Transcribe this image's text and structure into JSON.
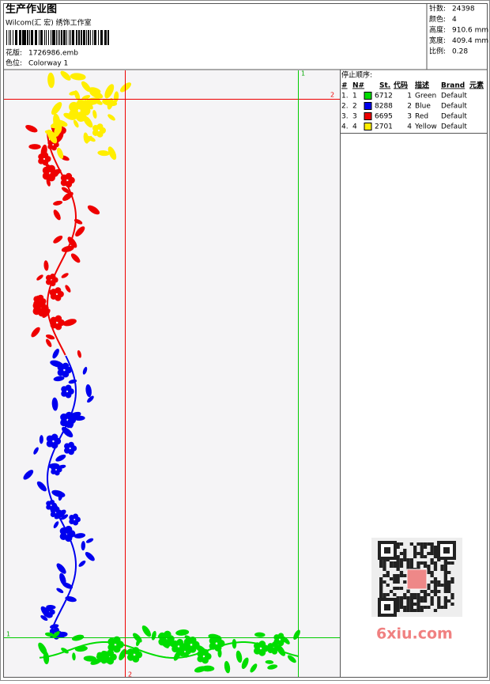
{
  "header": {
    "title": "生产作业图",
    "studio": "Wilcom(汇 宏) 绣饰工作室",
    "design": {
      "label": "花版:",
      "value": "1726986.emb"
    },
    "colorway": {
      "label": "色位:",
      "value": "Colorway 1"
    }
  },
  "info": [
    {
      "label": "针数:",
      "value": "24398"
    },
    {
      "label": "颜色:",
      "value": "4"
    },
    {
      "label": "高度:",
      "value": "910.6 mm"
    },
    {
      "label": "宽度:",
      "value": "409.4 mm"
    },
    {
      "label": "比例:",
      "value": "0.28"
    }
  ],
  "stop_sequence": {
    "title": "停止顺序:",
    "columns": [
      "#",
      "N#",
      "St.",
      "代码",
      "描述",
      "Brand",
      "元素"
    ],
    "rows": [
      {
        "index": "1.",
        "n": "1",
        "color": "#00dd00",
        "stitches": "6712",
        "code": "1",
        "description": "Green",
        "brand": "Default"
      },
      {
        "index": "2.",
        "n": "2",
        "color": "#0000ee",
        "stitches": "8288",
        "code": "2",
        "description": "Blue",
        "brand": "Default"
      },
      {
        "index": "3.",
        "n": "3",
        "color": "#ee0000",
        "stitches": "6695",
        "code": "3",
        "description": "Red",
        "brand": "Default"
      },
      {
        "index": "4.",
        "n": "4",
        "color": "#ffee00",
        "stitches": "2701",
        "code": "4",
        "description": "Yellow",
        "brand": "Default"
      }
    ]
  },
  "guide_labels": [
    "2",
    "1",
    "1",
    "2"
  ],
  "watermark": "6xiu.com"
}
